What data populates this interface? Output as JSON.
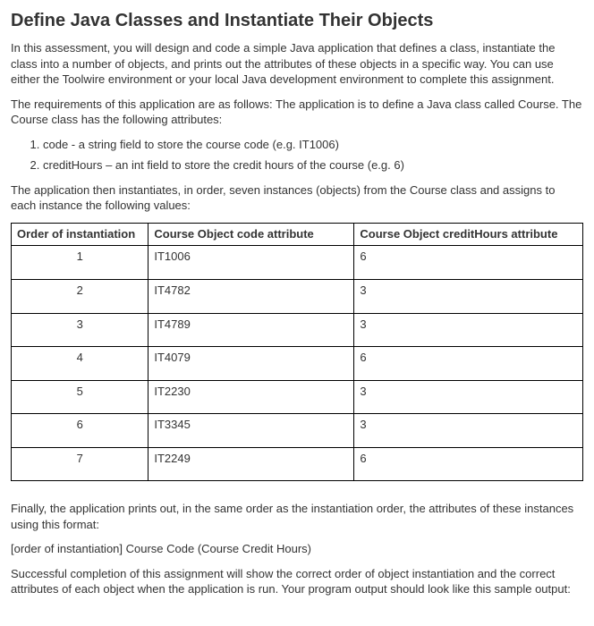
{
  "title": "Define Java Classes and Instantiate Their Objects",
  "intro": "In this assessment, you will design and code a simple Java application that defines a class, instantiate the class into a number of objects, and prints out the attributes of these objects in a specific way. You can use either the Toolwire environment or your local Java development environment to complete this assignment.",
  "req_intro": "The requirements of this application are as follows: The application is to define a Java class called  Course. The Course class has the following attributes:",
  "req_list": [
    "code - a string field to store the course code (e.g. IT1006)",
    "creditHours – an int field to store the credit hours of the course (e.g. 6)"
  ],
  "instantiate_text": "The application then instantiates, in order, seven instances (objects) from the Course class  and assigns to each instance the following values:",
  "table": {
    "headers": {
      "order": "Order of instantiation",
      "code": "Course Object code attribute",
      "credit": "Course Object creditHours attribute"
    },
    "rows": [
      {
        "order": "1",
        "code": "IT1006",
        "credit": "6"
      },
      {
        "order": "2",
        "code": "IT4782",
        "credit": "3"
      },
      {
        "order": "3",
        "code": "IT4789",
        "credit": "3"
      },
      {
        "order": "4",
        "code": "IT4079",
        "credit": "6"
      },
      {
        "order": "5",
        "code": "IT2230",
        "credit": "3"
      },
      {
        "order": "6",
        "code": "IT3345",
        "credit": "3"
      },
      {
        "order": "7",
        "code": "IT2249",
        "credit": "6"
      }
    ]
  },
  "finally_text": "Finally, the application prints out, in the same order as the instantiation order, the attributes of these  instances using this format:",
  "format_text": "[order of instantiation] Course Code (Course Credit Hours)",
  "completion_text": "Successful completion of this assignment will show the correct order of object instantiation and the  correct attributes of each object when the application is run. Your program output should look like  this sample output:"
}
